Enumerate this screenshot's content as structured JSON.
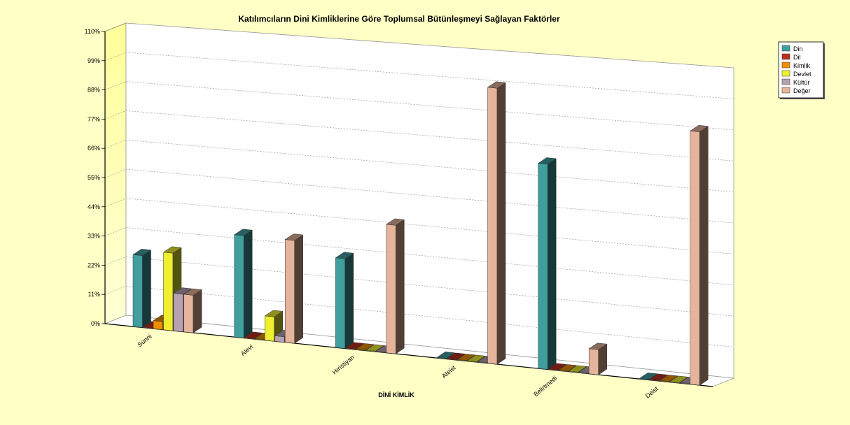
{
  "chart_data": {
    "type": "bar",
    "title": "Katılımcıların Dini Kimliklerine Göre Toplumsal Bütünleşmeyi Sağlayan Faktörler",
    "xlabel": "DİNİ KİMLİK",
    "ylabel": "",
    "y_unit": "%",
    "ylim": [
      0,
      110
    ],
    "yticks": [
      "0%",
      "11%",
      "22%",
      "33%",
      "44%",
      "55%",
      "66%",
      "77%",
      "88%",
      "99%",
      "110%"
    ],
    "categories": [
      "Sünni",
      "Alevi",
      "Hıristiyan",
      "Ateist",
      "Belirtmedi",
      "Deist"
    ],
    "series": [
      {
        "name": "Din",
        "color": "#3f9f9f",
        "values": [
          27,
          38,
          33,
          0,
          74,
          0
        ]
      },
      {
        "name": "Dil",
        "color": "#bf2f1f",
        "values": [
          0,
          0,
          0,
          0,
          0,
          0
        ]
      },
      {
        "name": "Kimlik",
        "color": "#ef8f00",
        "values": [
          3,
          0,
          0,
          0,
          0,
          0
        ]
      },
      {
        "name": "Devlet",
        "color": "#efef2f",
        "values": [
          29,
          9,
          0,
          0,
          0,
          0
        ]
      },
      {
        "name": "Kültür",
        "color": "#b7a2b2",
        "values": [
          14,
          2,
          0,
          0,
          0,
          0
        ]
      },
      {
        "name": "Değer",
        "color": "#e6b49a",
        "values": [
          14,
          38,
          47,
          100,
          9,
          90
        ]
      }
    ],
    "grid": true,
    "legend_position": "top-right"
  }
}
